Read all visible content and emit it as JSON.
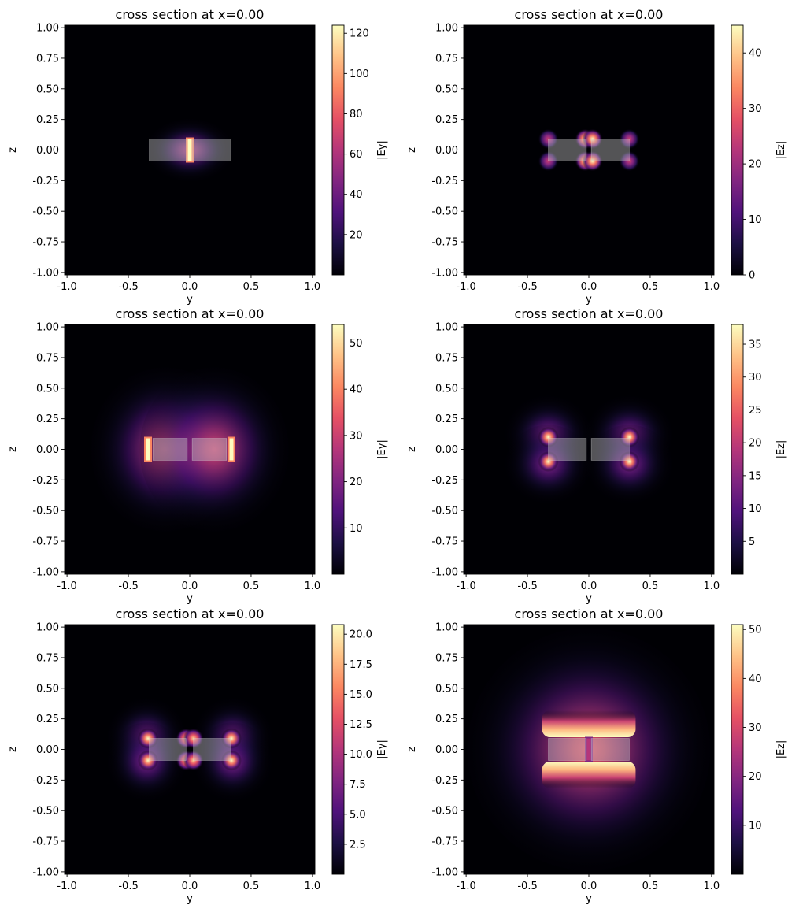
{
  "figure": {
    "layout": "3 rows x 2 columns",
    "colormap": "magma"
  },
  "chart_data": [
    {
      "type": "heatmap",
      "title": "cross section at x=0.00",
      "xlabel": "y",
      "ylabel": "z",
      "colorbar_label": "|Ey|",
      "xlim": [
        -1.02,
        1.02
      ],
      "ylim": [
        -1.02,
        1.02
      ],
      "xticks": [
        "-1.0",
        "-0.5",
        "0.0",
        "0.5",
        "1.0"
      ],
      "yticks": [
        "1.00",
        "0.75",
        "0.50",
        "0.25",
        "0.00",
        "-0.25",
        "-0.50",
        "-0.75",
        "-1.00"
      ],
      "clim": [
        0,
        124
      ],
      "cticks": [
        "120",
        "100",
        "80",
        "60",
        "40",
        "20"
      ],
      "structures": [
        {
          "y": [
            -0.33,
            -0.02
          ],
          "z": [
            -0.09,
            0.09
          ]
        },
        {
          "y": [
            0.02,
            0.33
          ],
          "z": [
            -0.09,
            0.09
          ]
        }
      ],
      "features": [
        {
          "kind": "glow",
          "y": 0,
          "z": 0,
          "sy": 0.22,
          "sz": 0.16,
          "a": 0.45
        },
        {
          "kind": "line",
          "y": 0,
          "z0": -0.09,
          "z1": 0.09,
          "a": 1.0
        }
      ]
    },
    {
      "type": "heatmap",
      "title": "cross section at x=0.00",
      "xlabel": "y",
      "ylabel": "z",
      "colorbar_label": "|Ez|",
      "xlim": [
        -1.02,
        1.02
      ],
      "ylim": [
        -1.02,
        1.02
      ],
      "xticks": [
        "-1.0",
        "-0.5",
        "0.0",
        "0.5",
        "1.0"
      ],
      "yticks": [
        "1.00",
        "0.75",
        "0.50",
        "0.25",
        "0.00",
        "-0.25",
        "-0.50",
        "-0.75",
        "-1.00"
      ],
      "clim": [
        0,
        45
      ],
      "cticks": [
        "40",
        "30",
        "20",
        "10",
        "0"
      ],
      "structures": [
        {
          "y": [
            -0.33,
            -0.02
          ],
          "z": [
            -0.09,
            0.09
          ]
        },
        {
          "y": [
            0.02,
            0.33
          ],
          "z": [
            -0.09,
            0.09
          ]
        }
      ],
      "features": [
        {
          "kind": "spot",
          "y": -0.33,
          "z": 0.09,
          "a": 0.55
        },
        {
          "kind": "spot",
          "y": -0.33,
          "z": -0.09,
          "a": 0.55
        },
        {
          "kind": "spot",
          "y": 0.33,
          "z": 0.09,
          "a": 0.55
        },
        {
          "kind": "spot",
          "y": 0.33,
          "z": -0.09,
          "a": 0.55
        },
        {
          "kind": "spot",
          "y": -0.03,
          "z": 0.09,
          "a": 1.0
        },
        {
          "kind": "spot",
          "y": 0.03,
          "z": 0.09,
          "a": 1.0
        },
        {
          "kind": "spot",
          "y": -0.03,
          "z": -0.09,
          "a": 1.0
        },
        {
          "kind": "spot",
          "y": 0.03,
          "z": -0.09,
          "a": 1.0
        }
      ]
    },
    {
      "type": "heatmap",
      "title": "cross section at x=0.00",
      "xlabel": "y",
      "ylabel": "z",
      "colorbar_label": "|Ey|",
      "xlim": [
        -1.02,
        1.02
      ],
      "ylim": [
        -1.02,
        1.02
      ],
      "xticks": [
        "-1.0",
        "-0.5",
        "0.0",
        "0.5",
        "1.0"
      ],
      "yticks": [
        "1.00",
        "0.75",
        "0.50",
        "0.25",
        "0.00",
        "-0.25",
        "-0.50",
        "-0.75",
        "-1.00"
      ],
      "clim": [
        0,
        54
      ],
      "cticks": [
        "50",
        "40",
        "30",
        "20",
        "10"
      ],
      "structures": [
        {
          "y": [
            -0.3,
            -0.02
          ],
          "z": [
            -0.09,
            0.09
          ]
        },
        {
          "y": [
            0.02,
            0.3
          ],
          "z": [
            -0.09,
            0.09
          ]
        }
      ],
      "features": [
        {
          "kind": "lobe",
          "y": -0.2,
          "z": 0,
          "sy": 0.38,
          "sz": 0.42,
          "a": 0.55
        },
        {
          "kind": "lobe",
          "y": 0.2,
          "z": 0,
          "sy": 0.38,
          "sz": 0.42,
          "a": 0.55
        },
        {
          "kind": "line",
          "y": -0.34,
          "z0": -0.09,
          "z1": 0.09,
          "a": 1.0
        },
        {
          "kind": "line",
          "y": 0.34,
          "z0": -0.09,
          "z1": 0.09,
          "a": 1.0
        }
      ]
    },
    {
      "type": "heatmap",
      "title": "cross section at x=0.00",
      "xlabel": "y",
      "ylabel": "z",
      "colorbar_label": "|Ez|",
      "xlim": [
        -1.02,
        1.02
      ],
      "ylim": [
        -1.02,
        1.02
      ],
      "xticks": [
        "-1.0",
        "-0.5",
        "0.0",
        "0.5",
        "1.0"
      ],
      "yticks": [
        "1.00",
        "0.75",
        "0.50",
        "0.25",
        "0.00",
        "-0.25",
        "-0.50",
        "-0.75",
        "-1.00"
      ],
      "clim": [
        0,
        38
      ],
      "cticks": [
        "35",
        "30",
        "25",
        "20",
        "15",
        "10",
        "5"
      ],
      "structures": [
        {
          "y": [
            -0.33,
            -0.02
          ],
          "z": [
            -0.09,
            0.09
          ]
        },
        {
          "y": [
            0.02,
            0.33
          ],
          "z": [
            -0.09,
            0.09
          ]
        }
      ],
      "features": [
        {
          "kind": "glow",
          "y": -0.33,
          "z": 0.12,
          "sy": 0.22,
          "sz": 0.2,
          "a": 0.35
        },
        {
          "kind": "glow",
          "y": 0.33,
          "z": 0.12,
          "sy": 0.22,
          "sz": 0.2,
          "a": 0.35
        },
        {
          "kind": "glow",
          "y": -0.33,
          "z": -0.12,
          "sy": 0.22,
          "sz": 0.2,
          "a": 0.35
        },
        {
          "kind": "glow",
          "y": 0.33,
          "z": -0.12,
          "sy": 0.22,
          "sz": 0.2,
          "a": 0.35
        },
        {
          "kind": "spot",
          "y": -0.33,
          "z": 0.1,
          "a": 1.0
        },
        {
          "kind": "spot",
          "y": 0.33,
          "z": 0.1,
          "a": 1.0
        },
        {
          "kind": "spot",
          "y": -0.33,
          "z": -0.1,
          "a": 1.0
        },
        {
          "kind": "spot",
          "y": 0.33,
          "z": -0.1,
          "a": 1.0
        }
      ]
    },
    {
      "type": "heatmap",
      "title": "cross section at x=0.00",
      "xlabel": "y",
      "ylabel": "z",
      "colorbar_label": "|Ey|",
      "xlim": [
        -1.02,
        1.02
      ],
      "ylim": [
        -1.02,
        1.02
      ],
      "xticks": [
        "-1.0",
        "-0.5",
        "0.0",
        "0.5",
        "1.0"
      ],
      "yticks": [
        "1.00",
        "0.75",
        "0.50",
        "0.25",
        "0.00",
        "-0.25",
        "-0.50",
        "-0.75",
        "-1.00"
      ],
      "clim": [
        0,
        20.8
      ],
      "cticks": [
        "20.0",
        "17.5",
        "15.0",
        "12.5",
        "10.0",
        "7.5",
        "5.0",
        "2.5"
      ],
      "structures": [
        {
          "y": [
            -0.33,
            -0.03
          ],
          "z": [
            -0.09,
            0.09
          ]
        },
        {
          "y": [
            0.03,
            0.33
          ],
          "z": [
            -0.09,
            0.09
          ]
        }
      ],
      "features": [
        {
          "kind": "glow",
          "y": -0.35,
          "z": 0.1,
          "sy": 0.2,
          "sz": 0.2,
          "a": 0.35
        },
        {
          "kind": "glow",
          "y": 0.35,
          "z": 0.1,
          "sy": 0.2,
          "sz": 0.2,
          "a": 0.35
        },
        {
          "kind": "glow",
          "y": -0.35,
          "z": -0.1,
          "sy": 0.2,
          "sz": 0.2,
          "a": 0.35
        },
        {
          "kind": "glow",
          "y": 0.35,
          "z": -0.1,
          "sy": 0.2,
          "sz": 0.2,
          "a": 0.35
        },
        {
          "kind": "spot",
          "y": -0.34,
          "z": 0.09,
          "a": 1.0
        },
        {
          "kind": "spot",
          "y": 0.34,
          "z": 0.09,
          "a": 1.0
        },
        {
          "kind": "spot",
          "y": -0.34,
          "z": -0.09,
          "a": 1.0
        },
        {
          "kind": "spot",
          "y": 0.34,
          "z": -0.09,
          "a": 1.0
        },
        {
          "kind": "spot",
          "y": -0.03,
          "z": 0.09,
          "a": 0.9
        },
        {
          "kind": "spot",
          "y": 0.03,
          "z": 0.09,
          "a": 0.9
        },
        {
          "kind": "spot",
          "y": -0.03,
          "z": -0.09,
          "a": 0.9
        },
        {
          "kind": "spot",
          "y": 0.03,
          "z": -0.09,
          "a": 0.9
        }
      ]
    },
    {
      "type": "heatmap",
      "title": "cross section at x=0.00",
      "xlabel": "y",
      "ylabel": "z",
      "colorbar_label": "|Ez|",
      "xlim": [
        -1.02,
        1.02
      ],
      "ylim": [
        -1.02,
        1.02
      ],
      "xticks": [
        "-1.0",
        "-0.5",
        "0.0",
        "0.5",
        "1.0"
      ],
      "yticks": [
        "1.00",
        "0.75",
        "0.50",
        "0.25",
        "0.00",
        "-0.25",
        "-0.50",
        "-0.75",
        "-1.00"
      ],
      "clim": [
        0,
        51
      ],
      "cticks": [
        "50",
        "40",
        "30",
        "20",
        "10"
      ],
      "structures": [
        {
          "y": [
            -0.33,
            -0.02
          ],
          "z": [
            -0.09,
            0.09
          ]
        },
        {
          "y": [
            0.02,
            0.33
          ],
          "z": [
            -0.09,
            0.09
          ]
        }
      ],
      "features": [
        {
          "kind": "halo",
          "y": 0,
          "z": 0,
          "sy": 0.62,
          "sz": 0.62,
          "a": 0.62
        },
        {
          "kind": "band",
          "y0": -0.33,
          "y1": 0.33,
          "z": 0.1,
          "a": 1.0
        },
        {
          "kind": "band",
          "y0": -0.33,
          "y1": 0.33,
          "z": -0.1,
          "a": 1.0
        },
        {
          "kind": "line",
          "y": 0,
          "z0": -0.09,
          "z1": 0.09,
          "a": 0.5
        }
      ]
    }
  ]
}
